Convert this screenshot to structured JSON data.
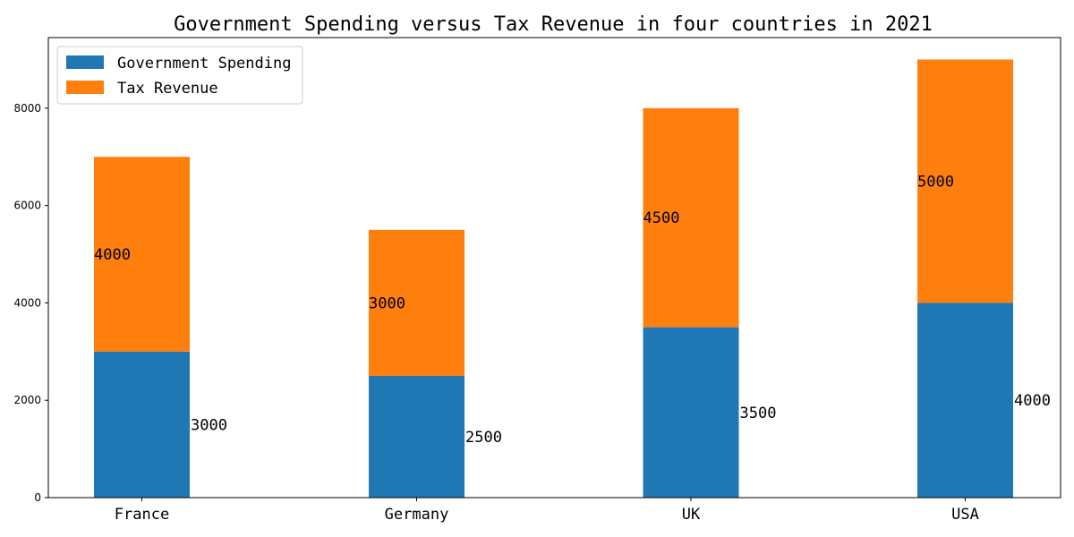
{
  "chart_data": {
    "type": "bar",
    "stacked": true,
    "title": "Government Spending versus Tax Revenue in four countries in 2021",
    "categories": [
      "France",
      "Germany",
      "UK",
      "USA"
    ],
    "series": [
      {
        "name": "Government Spending",
        "color": "#1f77b4",
        "values": [
          3000,
          2500,
          3500,
          4000
        ]
      },
      {
        "name": "Tax Revenue",
        "color": "#ff7f0e",
        "values": [
          4000,
          3000,
          4500,
          5000
        ]
      }
    ],
    "ylim": [
      0,
      9450
    ],
    "yticks": [
      0,
      2000,
      4000,
      6000,
      8000
    ],
    "xlabel": "",
    "ylabel": "",
    "grid": false,
    "legend_position": "top-left"
  }
}
